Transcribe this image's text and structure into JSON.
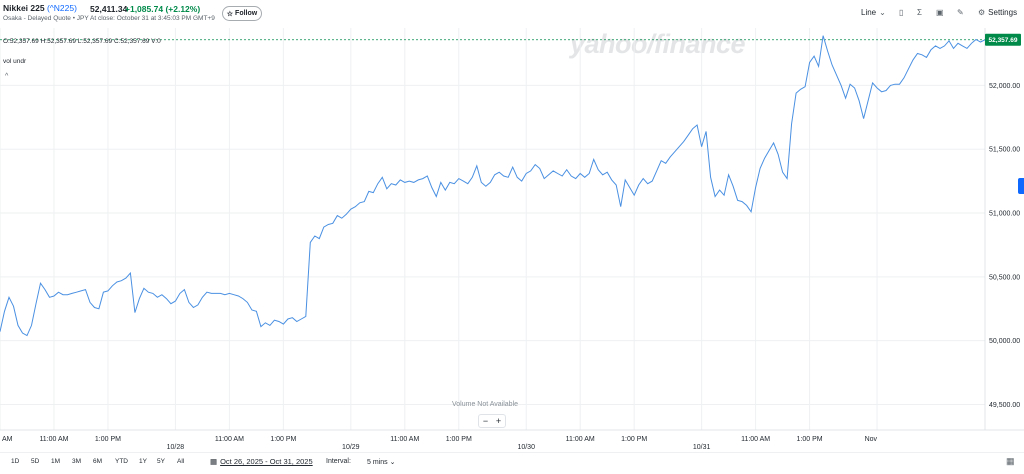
{
  "header": {
    "symbol_name": "Nikkei 225",
    "symbol_code": "(^N225)",
    "subtitle": "Osaka - Delayed Quote • JPY",
    "price": "52,411.34",
    "change": "+1,085.74",
    "change_pct": "(+2.12%)",
    "time": "At close: October 31 at 3:45:03 PM GMT+9",
    "follow_label": "Follow",
    "follow_icon": "star-icon"
  },
  "toolbar": {
    "chart_type": "Line",
    "settings_label": "Settings",
    "icons": [
      "compare-icon",
      "indicators-icon",
      "calendar-icon",
      "draw-icon",
      "gear-icon"
    ]
  },
  "ohlc": {
    "text": "O:52,357.69  H:52,357.69  L:52,357.69  C:52,357.69  V:0"
  },
  "volume": {
    "label": "vol undr",
    "not_available": "Volume Not Available",
    "zoom_out": "−",
    "zoom_in": "+"
  },
  "watermark": "yahoo/finance",
  "footer": {
    "ranges": [
      "1D",
      "5D",
      "1M",
      "3M",
      "6M",
      "YTD",
      "1Y",
      "5Y",
      "All"
    ],
    "date_range": "Oct 26, 2025 - Oct 31, 2025",
    "interval_label": "Interval:",
    "interval_value": "5 mins"
  },
  "colors": {
    "line": "#4a90e2",
    "last_price_tag": "#008a4a",
    "grid": "#eef0f2",
    "positive": "#008a4a",
    "accent": "#0f69ff"
  },
  "chart_data": {
    "type": "line",
    "title": "",
    "xlabel": "",
    "ylabel": "",
    "ylim": [
      49300,
      52450
    ],
    "yticks": [
      "49,500.00",
      "50,000.00",
      "50,500.00",
      "51,000.00",
      "51,500.00",
      "52,000.00"
    ],
    "ytick_values": [
      49500,
      50000,
      50500,
      51000,
      51500,
      52000
    ],
    "xticks": [
      "AM",
      "11:00 AM",
      "1:00 PM",
      "10/28",
      "11:00 AM",
      "1:00 PM",
      "10/29",
      "11:00 AM",
      "1:00 PM",
      "10/30",
      "11:00 AM",
      "1:00 PM",
      "10/31",
      "11:00 AM",
      "1:00 PM",
      "Nov"
    ],
    "xtick_index": [
      0,
      12,
      24,
      39,
      51,
      63,
      78,
      90,
      102,
      117,
      129,
      141,
      156,
      168,
      180,
      195
    ],
    "grid": true,
    "last_price_label": "52,357.69",
    "last_price": 52357.69,
    "series": [
      {
        "values": [
          50070,
          50230,
          50340,
          50270,
          50120,
          50060,
          50040,
          50120,
          50290,
          50450,
          50400,
          50340,
          50350,
          50380,
          50360,
          50360,
          50370,
          50380,
          50390,
          50400,
          50300,
          50260,
          50250,
          50380,
          50390,
          50430,
          50460,
          50470,
          50490,
          50530,
          50220,
          50330,
          50410,
          50380,
          50370,
          50340,
          50360,
          50330,
          50290,
          50310,
          50370,
          50400,
          50300,
          50260,
          50280,
          50340,
          50380,
          50370,
          50370,
          50370,
          50360,
          50370,
          50360,
          50350,
          50330,
          50300,
          50240,
          50230,
          50110,
          50140,
          50120,
          50160,
          50150,
          50130,
          50170,
          50180,
          50150,
          50170,
          50190,
          50770,
          50820,
          50800,
          50890,
          50910,
          50920,
          50980,
          50960,
          50990,
          51030,
          51050,
          51080,
          51090,
          51170,
          51160,
          51230,
          51280,
          51190,
          51230,
          51220,
          51260,
          51240,
          51250,
          51240,
          51260,
          51270,
          51290,
          51200,
          51130,
          51240,
          51180,
          51240,
          51230,
          51270,
          51250,
          51230,
          51280,
          51370,
          51240,
          51210,
          51240,
          51300,
          51320,
          51290,
          51280,
          51360,
          51280,
          51250,
          51310,
          51330,
          51380,
          51350,
          51270,
          51300,
          51330,
          51310,
          51290,
          51340,
          51290,
          51270,
          51310,
          51280,
          51310,
          51420,
          51340,
          51300,
          51320,
          51260,
          51220,
          51050,
          51260,
          51200,
          51140,
          51220,
          51270,
          51230,
          51250,
          51330,
          51410,
          51390,
          51440,
          51480,
          51520,
          51560,
          51610,
          51660,
          51690,
          51520,
          51640,
          51280,
          51130,
          51180,
          51140,
          51300,
          51210,
          51100,
          51090,
          51060,
          51010,
          51200,
          51350,
          51430,
          51490,
          51550,
          51460,
          51320,
          51270,
          51700,
          51940,
          51970,
          51990,
          52180,
          52230,
          52150,
          52390,
          52270,
          52160,
          52080,
          52000,
          51900,
          52010,
          51980,
          51880,
          51740,
          51880,
          52020,
          51980,
          51950,
          51960,
          52000,
          52010,
          52010,
          52060,
          52130,
          52200,
          52250,
          52240,
          52220,
          52280,
          52310,
          52290,
          52310,
          52350,
          52290,
          52330,
          52310,
          52290,
          52330,
          52360,
          52340,
          52357.69
        ]
      }
    ]
  }
}
